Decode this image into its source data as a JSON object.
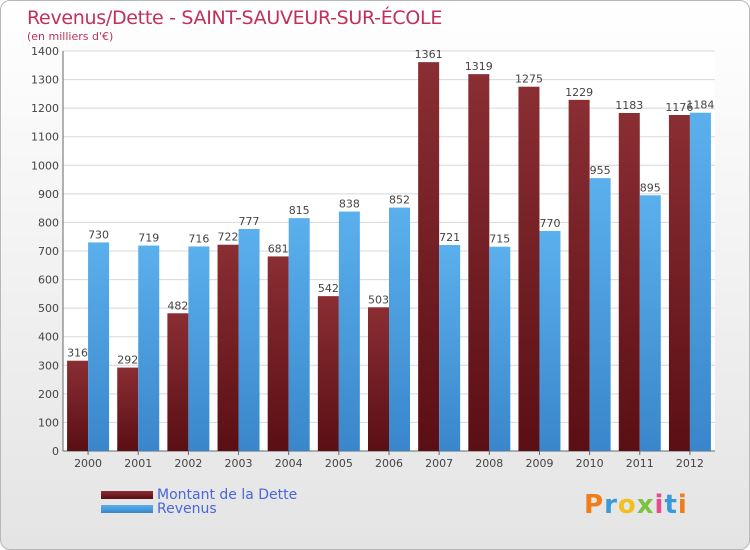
{
  "chart_data": {
    "type": "bar",
    "title": "Revenus/Dette - SAINT-SAUVEUR-SUR-ÉCOLE",
    "subtitle": "(en milliers d'€)",
    "categories": [
      "2000",
      "2001",
      "2002",
      "2003",
      "2004",
      "2005",
      "2006",
      "2007",
      "2008",
      "2009",
      "2010",
      "2011",
      "2012"
    ],
    "series": [
      {
        "name": "Montant de la Dette",
        "color": "#6b1a1f",
        "values": [
          316,
          292,
          482,
          722,
          681,
          542,
          503,
          1361,
          1319,
          1275,
          1229,
          1183,
          1176
        ]
      },
      {
        "name": "Revenus",
        "color": "#4a9ee0",
        "values": [
          730,
          719,
          716,
          777,
          815,
          838,
          852,
          721,
          715,
          770,
          955,
          895,
          1184
        ]
      }
    ],
    "ylim": [
      0,
      1400
    ],
    "yticks": [
      0,
      100,
      200,
      300,
      400,
      500,
      600,
      700,
      800,
      900,
      1000,
      1100,
      1200,
      1300,
      1400
    ],
    "grid": true,
    "legend": "bottom-left"
  },
  "logo": {
    "text": "Proxiti",
    "colors": [
      "#f07c1a",
      "#3a9ad9",
      "#f2c01e",
      "#7cc242",
      "#e84a8a",
      "#3a9ad9",
      "#f07c1a"
    ]
  }
}
